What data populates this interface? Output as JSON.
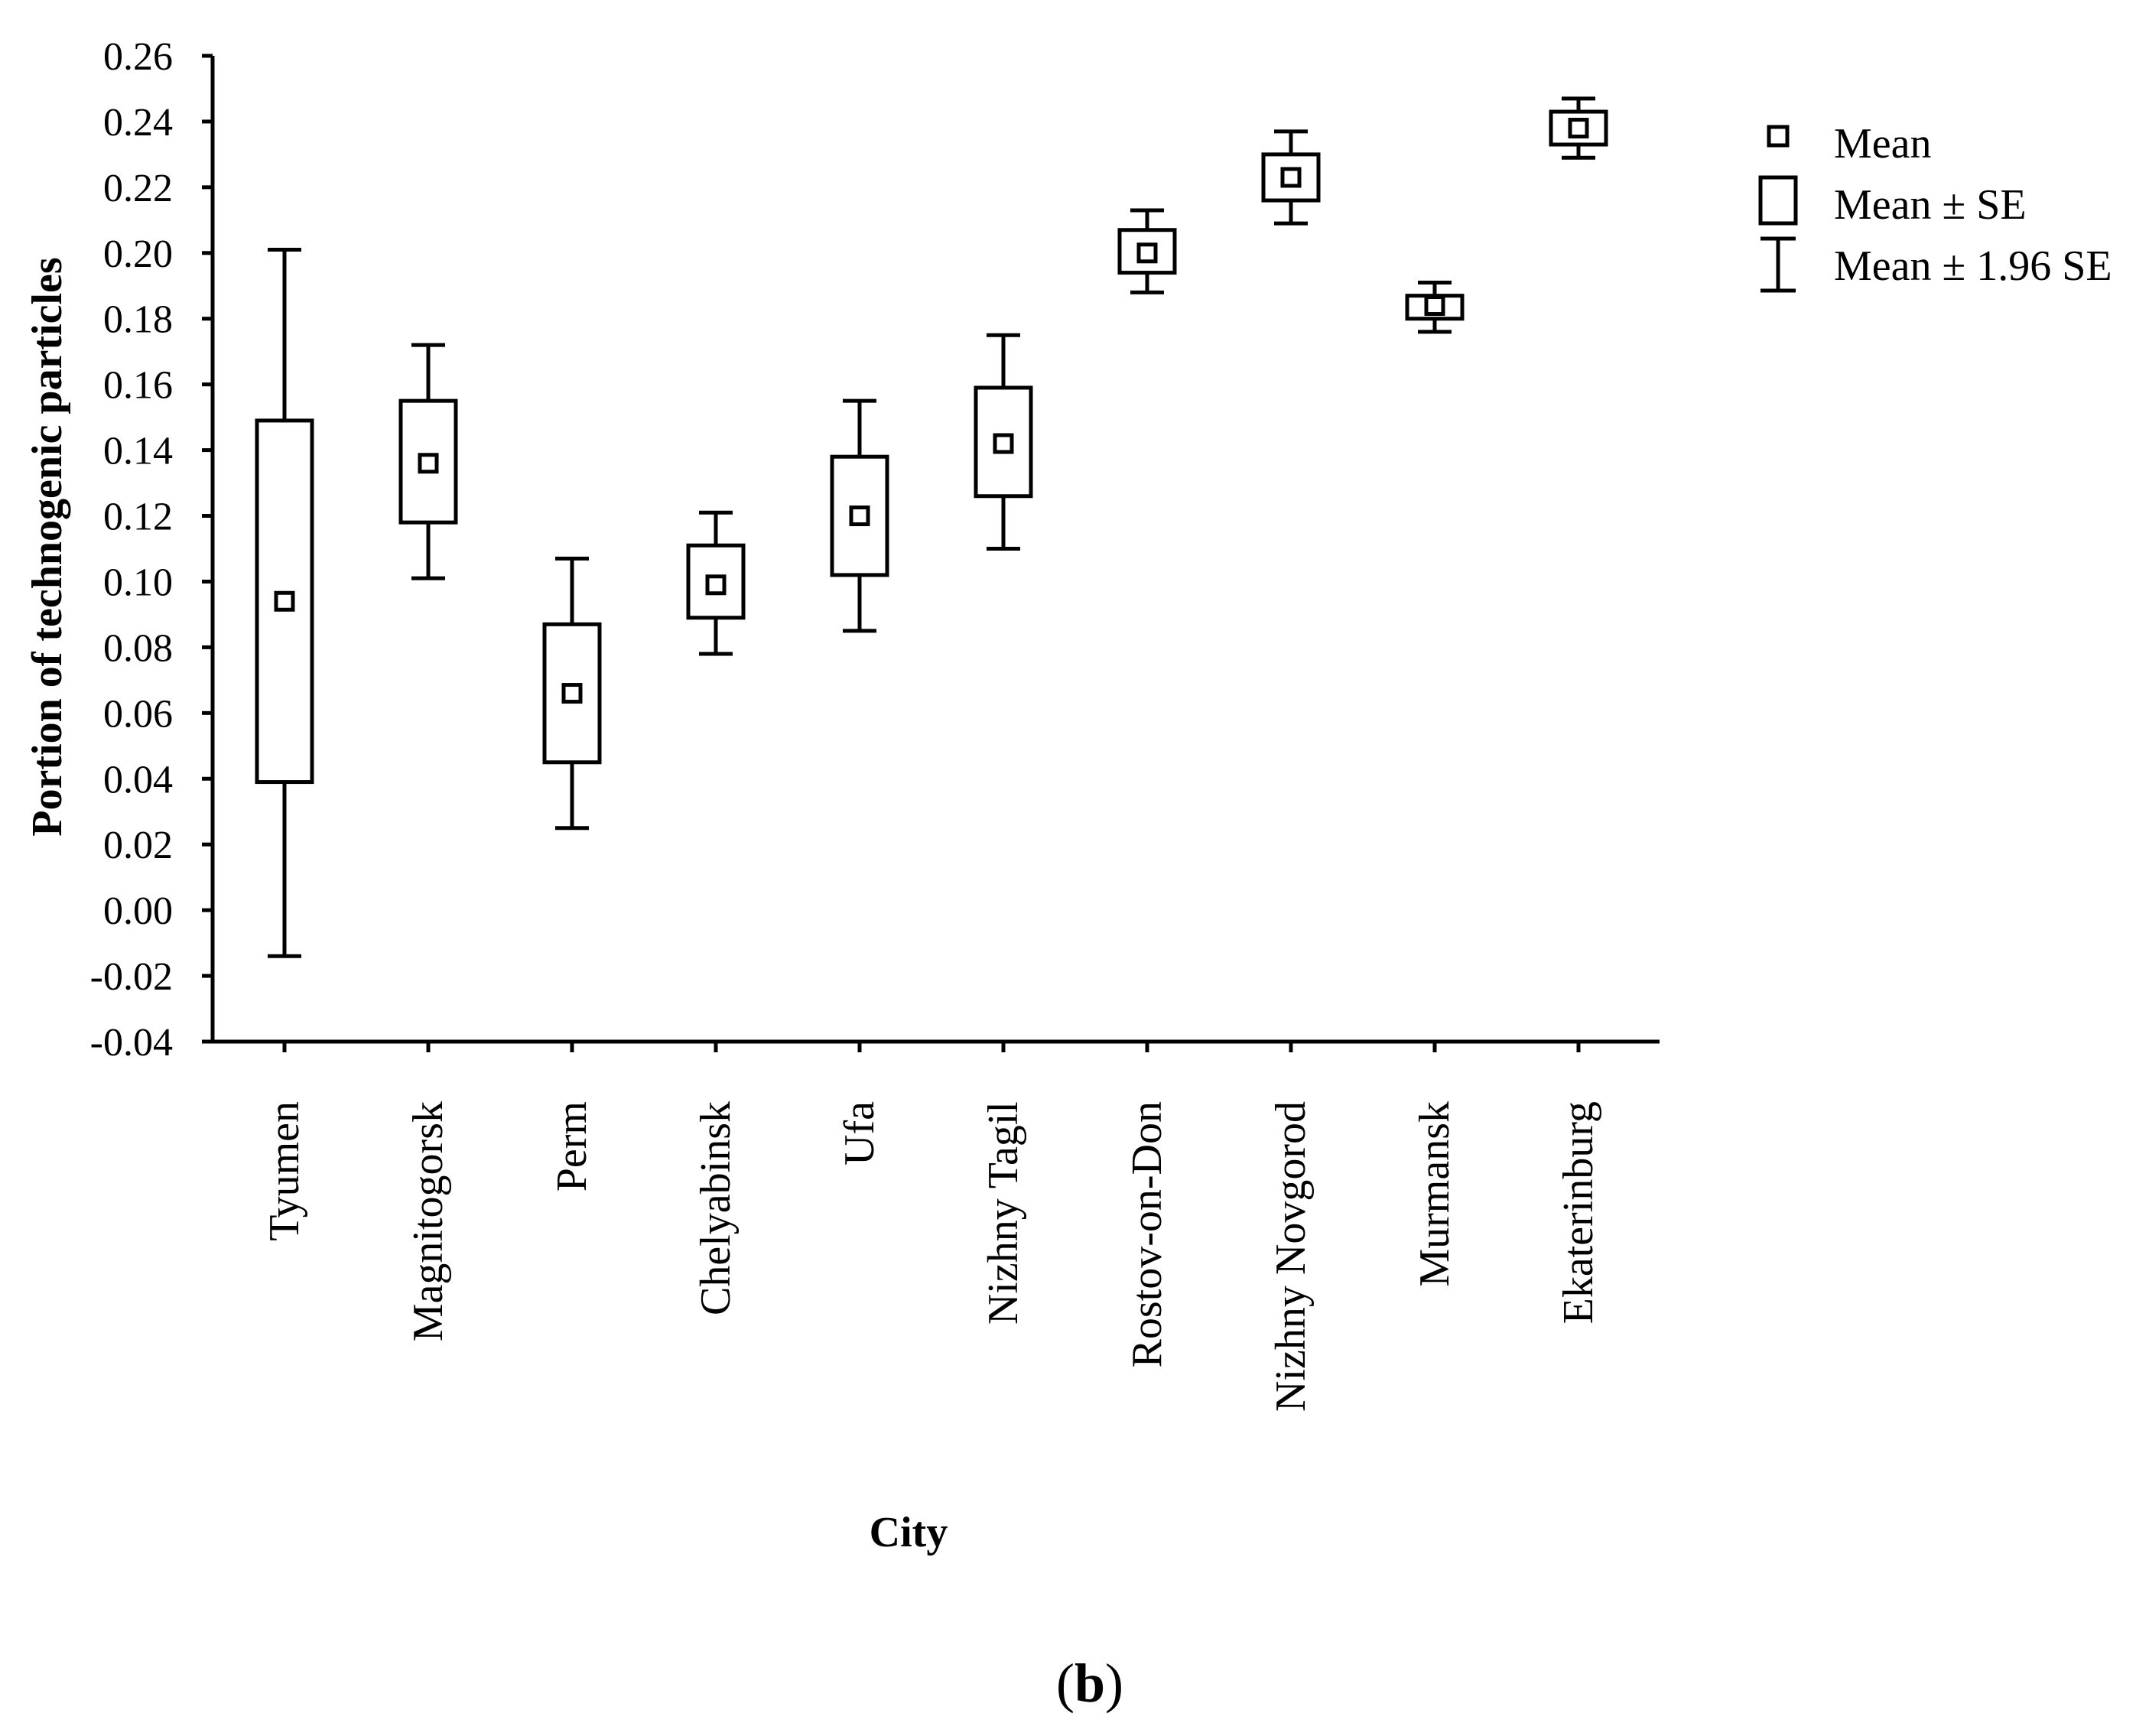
{
  "chart_data": {
    "type": "box",
    "ylabel": "Portion of technogenic particles",
    "xlabel": "City",
    "panel_label": "b",
    "ylim": [
      -0.04,
      0.26
    ],
    "yticks": [
      "0.26",
      "0.24",
      "0.22",
      "0.20",
      "0.18",
      "0.16",
      "0.14",
      "0.12",
      "0.10",
      "0.08",
      "0.06",
      "0.04",
      "0.02",
      "0.00",
      "-0.02",
      "-0.04"
    ],
    "categories": [
      "Tyumen",
      "Magnitogorsk",
      "Perm",
      "Chelyabinsk",
      "Ufa",
      "Nizhny Tagil",
      "Rostov-on-Don",
      "Nizhny Novgorod",
      "Murmansk",
      "Ekaterinburg"
    ],
    "series": [
      {
        "name": "Mean",
        "values": [
          0.094,
          0.136,
          0.066,
          0.099,
          0.12,
          0.142,
          0.2,
          0.223,
          0.184,
          0.238
        ]
      },
      {
        "name": "Mean ± SE",
        "low": [
          0.039,
          0.118,
          0.045,
          0.089,
          0.102,
          0.126,
          0.194,
          0.216,
          0.18,
          0.233
        ],
        "high": [
          0.149,
          0.155,
          0.087,
          0.111,
          0.138,
          0.159,
          0.207,
          0.23,
          0.187,
          0.243
        ]
      },
      {
        "name": "Mean ± 1.96 SE",
        "low": [
          -0.014,
          0.101,
          0.025,
          0.078,
          0.085,
          0.11,
          0.188,
          0.209,
          0.176,
          0.229
        ],
        "high": [
          0.201,
          0.172,
          0.107,
          0.121,
          0.155,
          0.175,
          0.213,
          0.237,
          0.191,
          0.247
        ]
      }
    ],
    "legend": [
      "Mean",
      "Mean ± SE",
      "Mean ± 1.96 SE"
    ]
  }
}
